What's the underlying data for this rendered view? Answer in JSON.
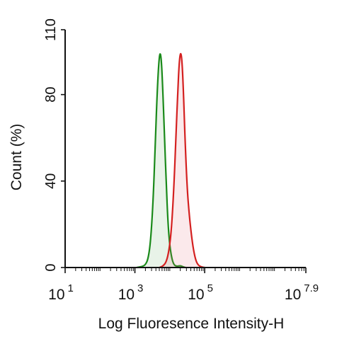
{
  "chart_data": {
    "type": "area",
    "xlabel": "Log Fluoresence Intensity-H",
    "ylabel": "Count  (%)",
    "xscale": "log",
    "xlim": [
      1,
      7.9
    ],
    "ylim": [
      0,
      110
    ],
    "x_ticks": [
      {
        "base": "10",
        "exp": "1",
        "value": 1
      },
      {
        "base": "10",
        "exp": "3",
        "value": 3
      },
      {
        "base": "10",
        "exp": "5",
        "value": 5
      },
      {
        "base": "10",
        "exp": "7.9",
        "value": 7.9
      }
    ],
    "y_ticks": [
      "0",
      "40",
      "80",
      "110"
    ],
    "y_tick_values": [
      0,
      40,
      80,
      110
    ],
    "grid": false,
    "legend": "none",
    "series": [
      {
        "color": "#1a8a1a",
        "fill": "rgba(26,138,26,0.10)",
        "points": [
          [
            3.05,
            0
          ],
          [
            3.2,
            0.4
          ],
          [
            3.3,
            1.2
          ],
          [
            3.38,
            4
          ],
          [
            3.45,
            12
          ],
          [
            3.52,
            30
          ],
          [
            3.58,
            55
          ],
          [
            3.63,
            78
          ],
          [
            3.68,
            94
          ],
          [
            3.72,
            100
          ],
          [
            3.76,
            96
          ],
          [
            3.8,
            82
          ],
          [
            3.85,
            60
          ],
          [
            3.9,
            38
          ],
          [
            3.95,
            20
          ],
          [
            4.0,
            10
          ],
          [
            4.06,
            4
          ],
          [
            4.12,
            1.2
          ],
          [
            4.2,
            0.5
          ],
          [
            4.3,
            0.9
          ],
          [
            4.38,
            0.3
          ],
          [
            4.45,
            0
          ]
        ]
      },
      {
        "color": "#d42020",
        "fill": "rgba(230,100,110,0.14)",
        "points": [
          [
            3.7,
            0
          ],
          [
            3.8,
            0.6
          ],
          [
            3.9,
            2.5
          ],
          [
            3.98,
            8
          ],
          [
            4.05,
            18
          ],
          [
            4.12,
            38
          ],
          [
            4.18,
            62
          ],
          [
            4.23,
            82
          ],
          [
            4.27,
            95
          ],
          [
            4.31,
            100
          ],
          [
            4.35,
            96
          ],
          [
            4.39,
            82
          ],
          [
            4.44,
            58
          ],
          [
            4.5,
            36
          ],
          [
            4.56,
            24
          ],
          [
            4.62,
            15
          ],
          [
            4.68,
            8
          ],
          [
            4.75,
            3
          ],
          [
            4.82,
            1
          ],
          [
            4.9,
            0.3
          ],
          [
            5.0,
            0
          ]
        ]
      }
    ]
  }
}
